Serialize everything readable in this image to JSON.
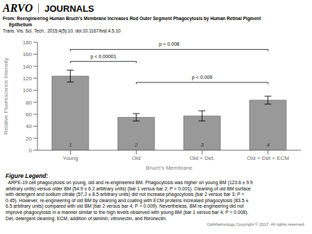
{
  "chart_data": {
    "type": "bar",
    "categories": [
      "Young",
      "Old",
      "Old + Det.",
      "Old + Det + ECM"
    ],
    "values": [
      123.6,
      54.9,
      57.2,
      83.5
    ],
    "errors": [
      9.9,
      6.2,
      8.5,
      6.5
    ],
    "color": "#999999",
    "bar_labels": [
      "1",
      "2",
      "3",
      "4"
    ],
    "ylabel": "Relative Fluorescence Intensity",
    "xlabel": "Bruch's Membrane",
    "ylim": [
      0,
      180
    ],
    "yticks": [
      0,
      20,
      40,
      60,
      80,
      100,
      120,
      140,
      160,
      180
    ],
    "annotations": [
      {
        "from": "Young",
        "to": "Old",
        "y": 148,
        "label": "p < 0.00001"
      },
      {
        "from": "Young",
        "to": "Old + Det + ECM",
        "y": 168,
        "label": "p < 0.008"
      },
      {
        "from": "Old",
        "to": "Old + Det + ECM",
        "y": 113,
        "label": "p < 0.009"
      }
    ],
    "header": [
      "ARVO",
      "JOURNALS"
    ],
    "source_lines": [
      "From: Reengineering Human Bruch’s Membrane Increases Rod Outer Segment Phagocytosis by Human Retinal Pigment",
      "     Epithelium",
      "Trans. Vis. Sci. Tech.. 2015;4(5):10. doi:10.1167/tvst.4.5.10"
    ],
    "caption_title": "Figure Legend:",
    "caption_lines": [
      "  ARPE-19 cell phagocytosis on young, old and re-engineered BM. Phagocytosis was higher on young BM (123.6 ± 9.9",
      "arbitrary units) versus older BM (54.9 ± 6.2 arbitrary units) (bar 1 versus bar 2; P < 0.001). Cleaning of old BM surface",
      "with detergent and sodium citrate (57.2 ± 8.5 arbitrary units) did not increase phagocytosis (bar 2 versus bar 3; P =",
      "0.45). However, re-engineering of old BM by cleaning and coating with ECM proteins increased phagocytosis (83.5 ±",
      "6.5 arbitrary units) compared with old BM (bar 2 versus bar 4; P = 0.009). Nevertheless, BM re-engineering did not",
      "improve phagocytosis in a manner similar to the high levels observed with young BM (bar 1 versus bar 4; P = 0.008).",
      "Det, detergent cleaning; ECM, addition of laminin, vitronectin, and fibronectin."
    ],
    "copyright": "Ophthalmology Copyright © 2017. All rights reserved."
  }
}
